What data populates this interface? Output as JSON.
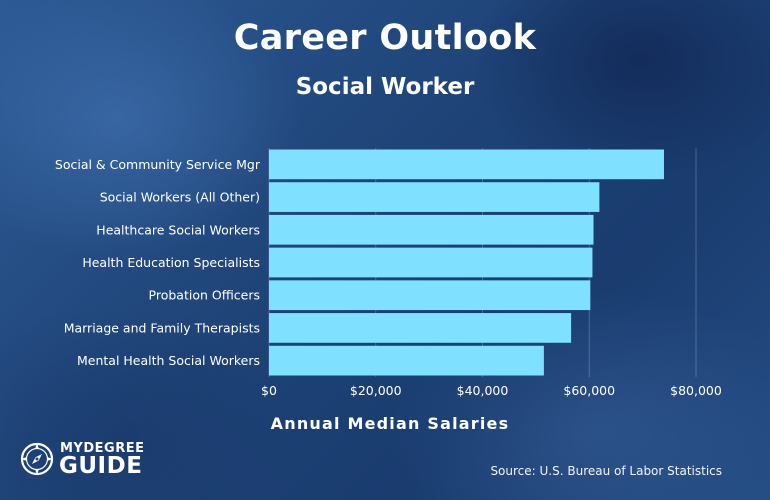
{
  "header": {
    "title": "Career Outlook",
    "subtitle": "Social Worker"
  },
  "chart_data": {
    "type": "bar",
    "orientation": "horizontal",
    "title": "Career Outlook",
    "subtitle": "Social Worker",
    "xlabel": "Annual Median Salaries",
    "ylabel": "",
    "categories": [
      "Social & Community Service Mgr",
      "Social Workers (All Other)",
      "Healthcare Social Workers",
      "Health Education Specialists",
      "Probation Officers",
      "Marriage and Family Therapists",
      "Mental Health Social Workers"
    ],
    "values": [
      74000,
      61900,
      60800,
      60600,
      60200,
      56600,
      51500
    ],
    "xlim": [
      0,
      80000
    ],
    "xticks": [
      0,
      20000,
      40000,
      60000,
      80000
    ],
    "xtick_labels": [
      "$0",
      "$20,000",
      "$40,000",
      "$60,000",
      "$80,000"
    ],
    "bar_color": "#7fe0ff",
    "grid": true
  },
  "footer": {
    "source": "Source: U.S. Bureau of Labor Statistics"
  },
  "logo": {
    "line1": "MYDEGREE",
    "line2": "GUIDE",
    "icon": "compass-icon"
  }
}
